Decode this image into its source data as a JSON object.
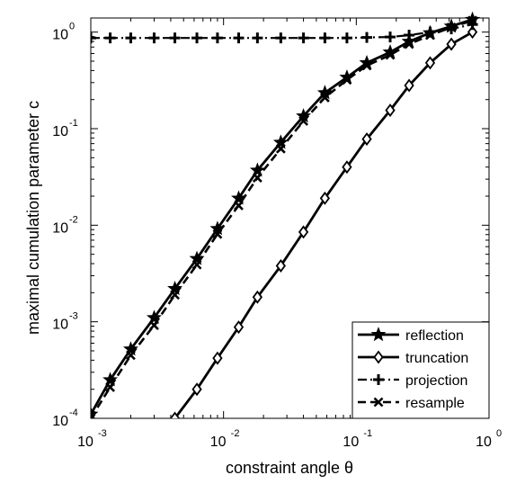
{
  "chart_data": {
    "type": "line",
    "xscale": "log",
    "yscale": "log",
    "xlim": [
      0.001,
      1
    ],
    "ylim": [
      0.0001,
      1.4
    ],
    "xlabel": "constraint angle θ",
    "ylabel": "maximal cumulation parameter c",
    "x_ticks": [
      {
        "base": "10",
        "exp": "-3",
        "value": 0.001
      },
      {
        "base": "10",
        "exp": "-2",
        "value": 0.01
      },
      {
        "base": "10",
        "exp": "-1",
        "value": 0.1
      },
      {
        "base": "10",
        "exp": "0",
        "value": 1
      }
    ],
    "y_ticks": [
      {
        "base": "10",
        "exp": "-4",
        "value": 0.0001
      },
      {
        "base": "10",
        "exp": "-3",
        "value": 0.001
      },
      {
        "base": "10",
        "exp": "-2",
        "value": 0.01
      },
      {
        "base": "10",
        "exp": "-1",
        "value": 0.1
      },
      {
        "base": "10",
        "exp": "0",
        "value": 1
      }
    ],
    "legend_position": "bottom-right",
    "series": [
      {
        "name": "reflection",
        "marker": "star",
        "line": "solid",
        "x": [
          0.001,
          0.0014,
          0.002,
          0.003,
          0.0043,
          0.0063,
          0.009,
          0.013,
          0.018,
          0.027,
          0.04,
          0.058,
          0.085,
          0.12,
          0.18,
          0.25,
          0.36,
          0.52,
          0.75
        ],
        "y": [
          0.00011,
          0.00025,
          0.00052,
          0.0011,
          0.0022,
          0.0045,
          0.0092,
          0.019,
          0.037,
          0.072,
          0.135,
          0.235,
          0.34,
          0.48,
          0.62,
          0.8,
          0.98,
          1.15,
          1.35
        ]
      },
      {
        "name": "truncation",
        "marker": "diamond",
        "line": "solid",
        "x": [
          0.0043,
          0.0063,
          0.009,
          0.013,
          0.018,
          0.027,
          0.04,
          0.058,
          0.085,
          0.12,
          0.18,
          0.25,
          0.36,
          0.52,
          0.75
        ],
        "y": [
          0.0001,
          0.0002,
          0.00042,
          0.00088,
          0.0018,
          0.0038,
          0.0085,
          0.019,
          0.04,
          0.078,
          0.155,
          0.28,
          0.48,
          0.75,
          1.0
        ]
      },
      {
        "name": "projection",
        "marker": "plus",
        "line": "dashdot",
        "x": [
          0.001,
          0.0014,
          0.002,
          0.003,
          0.0043,
          0.0063,
          0.009,
          0.013,
          0.018,
          0.027,
          0.04,
          0.058,
          0.085,
          0.12,
          0.18,
          0.25,
          0.36,
          0.52,
          0.75
        ],
        "y": [
          0.87,
          0.87,
          0.87,
          0.87,
          0.87,
          0.87,
          0.87,
          0.87,
          0.87,
          0.87,
          0.87,
          0.87,
          0.87,
          0.88,
          0.89,
          0.93,
          1.0,
          1.08,
          1.2
        ]
      },
      {
        "name": "resample",
        "marker": "x",
        "line": "dashed",
        "x": [
          0.001,
          0.0014,
          0.002,
          0.003,
          0.0043,
          0.0063,
          0.009,
          0.013,
          0.018,
          0.027,
          0.04,
          0.058,
          0.085,
          0.12,
          0.18,
          0.25,
          0.36,
          0.52,
          0.75
        ],
        "y": [
          0.0001,
          0.00021,
          0.00045,
          0.00092,
          0.0019,
          0.0039,
          0.0081,
          0.016,
          0.031,
          0.062,
          0.12,
          0.21,
          0.32,
          0.45,
          0.58,
          0.75,
          0.93,
          1.12,
          1.32
        ]
      }
    ]
  }
}
